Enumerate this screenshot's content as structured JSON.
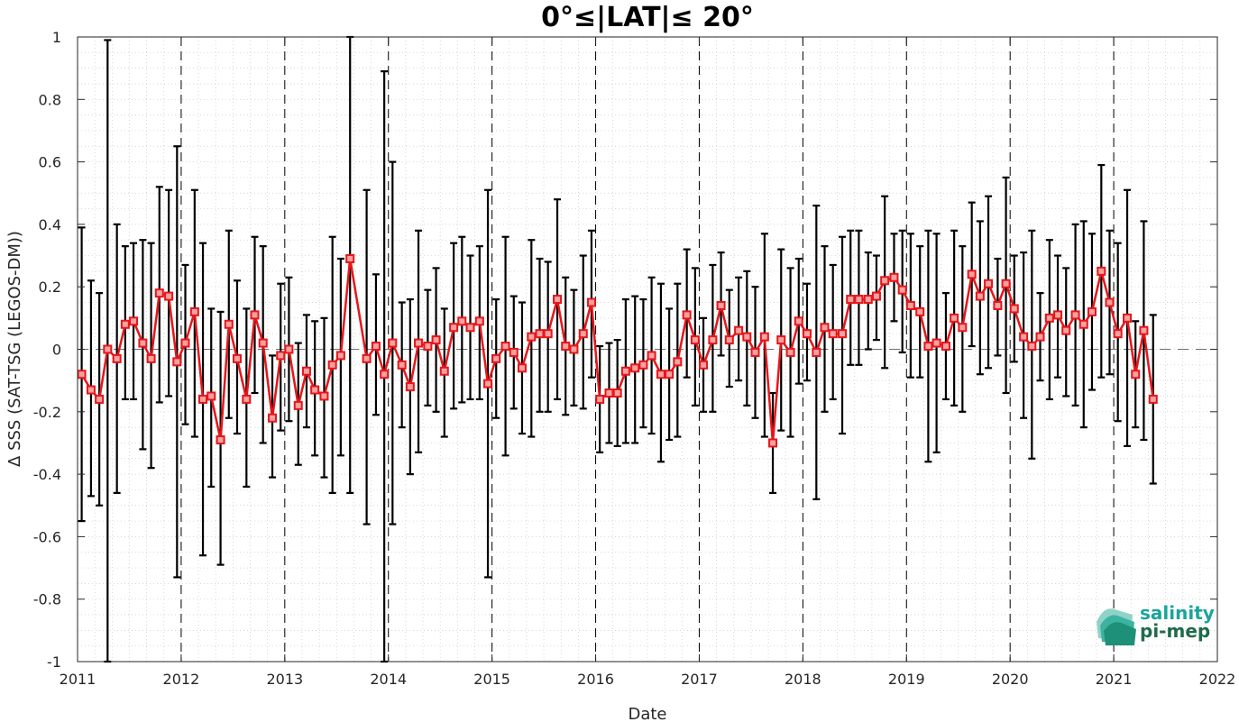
{
  "chart_data": {
    "type": "line",
    "title": "0°≤|LAT|≤ 20°",
    "xlabel": "Date",
    "ylabel": "Δ SSS (SAT-TSG (LEGOS-DM))",
    "xlim": [
      2011,
      2022
    ],
    "ylim": [
      -1,
      1
    ],
    "x_ticks": [
      "2011",
      "2012",
      "2013",
      "2014",
      "2015",
      "2016",
      "2017",
      "2018",
      "2019",
      "2020",
      "2021",
      "2022"
    ],
    "y_ticks": [
      "-1",
      "-0.8",
      "-0.6",
      "-0.4",
      "-0.2",
      "0",
      "0.2",
      "0.4",
      "0.6",
      "0.8",
      "1"
    ],
    "grid": "dotted minor grid",
    "year_markers": "dashed vertical lines at each year",
    "zero_line": "dashed horizontal line at 0",
    "series": [
      {
        "color": "#e6161b",
        "marker": "square",
        "points": [
          {
            "x": 2011.04,
            "y": -0.08,
            "low": -0.55,
            "high": 0.39
          },
          {
            "x": 2011.13,
            "y": -0.13,
            "low": -0.47,
            "high": 0.22
          },
          {
            "x": 2011.21,
            "y": -0.16,
            "low": -0.5,
            "high": 0.18
          },
          {
            "x": 2011.29,
            "y": 0.0,
            "low": -1.0,
            "high": 0.99
          },
          {
            "x": 2011.38,
            "y": -0.03,
            "low": -0.46,
            "high": 0.4
          },
          {
            "x": 2011.46,
            "y": 0.08,
            "low": -0.16,
            "high": 0.33
          },
          {
            "x": 2011.54,
            "y": 0.09,
            "low": -0.16,
            "high": 0.34
          },
          {
            "x": 2011.63,
            "y": 0.02,
            "low": -0.32,
            "high": 0.35
          },
          {
            "x": 2011.71,
            "y": -0.03,
            "low": -0.38,
            "high": 0.34
          },
          {
            "x": 2011.79,
            "y": 0.18,
            "low": -0.17,
            "high": 0.52
          },
          {
            "x": 2011.88,
            "y": 0.17,
            "low": -0.15,
            "high": 0.51
          },
          {
            "x": 2011.96,
            "y": -0.04,
            "low": -0.73,
            "high": 0.65
          },
          {
            "x": 2012.04,
            "y": 0.02,
            "low": -0.24,
            "high": 0.27
          },
          {
            "x": 2012.13,
            "y": 0.12,
            "low": -0.28,
            "high": 0.51
          },
          {
            "x": 2012.21,
            "y": -0.16,
            "low": -0.66,
            "high": 0.34
          },
          {
            "x": 2012.29,
            "y": -0.15,
            "low": -0.44,
            "high": 0.13
          },
          {
            "x": 2012.38,
            "y": -0.29,
            "low": -0.69,
            "high": 0.12
          },
          {
            "x": 2012.46,
            "y": 0.08,
            "low": -0.22,
            "high": 0.38
          },
          {
            "x": 2012.54,
            "y": -0.03,
            "low": -0.27,
            "high": 0.22
          },
          {
            "x": 2012.63,
            "y": -0.16,
            "low": -0.44,
            "high": 0.13
          },
          {
            "x": 2012.71,
            "y": 0.11,
            "low": -0.14,
            "high": 0.36
          },
          {
            "x": 2012.79,
            "y": 0.02,
            "low": -0.3,
            "high": 0.33
          },
          {
            "x": 2012.88,
            "y": -0.22,
            "low": -0.41,
            "high": -0.02
          },
          {
            "x": 2012.96,
            "y": -0.02,
            "low": -0.26,
            "high": 0.21
          },
          {
            "x": 2013.04,
            "y": 0.0,
            "low": -0.23,
            "high": 0.23
          },
          {
            "x": 2013.13,
            "y": -0.18,
            "low": -0.37,
            "high": 0.02
          },
          {
            "x": 2013.21,
            "y": -0.07,
            "low": -0.25,
            "high": 0.11
          },
          {
            "x": 2013.29,
            "y": -0.13,
            "low": -0.34,
            "high": 0.09
          },
          {
            "x": 2013.38,
            "y": -0.15,
            "low": -0.41,
            "high": 0.1
          },
          {
            "x": 2013.46,
            "y": -0.05,
            "low": -0.46,
            "high": 0.36
          },
          {
            "x": 2013.54,
            "y": -0.02,
            "low": -0.34,
            "high": 0.29
          },
          {
            "x": 2013.63,
            "y": 0.29,
            "low": -0.46,
            "high": 1.0
          },
          {
            "x": 2013.79,
            "y": -0.03,
            "low": -0.56,
            "high": 0.51
          },
          {
            "x": 2013.88,
            "y": 0.01,
            "low": -0.21,
            "high": 0.24
          },
          {
            "x": 2013.96,
            "y": -0.08,
            "low": -1.0,
            "high": 0.89
          },
          {
            "x": 2014.04,
            "y": 0.02,
            "low": -0.56,
            "high": 0.6
          },
          {
            "x": 2014.13,
            "y": -0.05,
            "low": -0.25,
            "high": 0.15
          },
          {
            "x": 2014.21,
            "y": -0.12,
            "low": -0.4,
            "high": 0.16
          },
          {
            "x": 2014.29,
            "y": 0.02,
            "low": -0.33,
            "high": 0.38
          },
          {
            "x": 2014.38,
            "y": 0.01,
            "low": -0.18,
            "high": 0.19
          },
          {
            "x": 2014.46,
            "y": 0.03,
            "low": -0.2,
            "high": 0.26
          },
          {
            "x": 2014.54,
            "y": -0.07,
            "low": -0.28,
            "high": 0.13
          },
          {
            "x": 2014.63,
            "y": 0.07,
            "low": -0.19,
            "high": 0.34
          },
          {
            "x": 2014.71,
            "y": 0.09,
            "low": -0.17,
            "high": 0.36
          },
          {
            "x": 2014.79,
            "y": 0.07,
            "low": -0.16,
            "high": 0.3
          },
          {
            "x": 2014.88,
            "y": 0.09,
            "low": -0.16,
            "high": 0.33
          },
          {
            "x": 2014.96,
            "y": -0.11,
            "low": -0.73,
            "high": 0.51
          },
          {
            "x": 2015.04,
            "y": -0.03,
            "low": -0.22,
            "high": 0.16
          },
          {
            "x": 2015.13,
            "y": 0.01,
            "low": -0.34,
            "high": 0.36
          },
          {
            "x": 2015.21,
            "y": -0.01,
            "low": -0.19,
            "high": 0.17
          },
          {
            "x": 2015.29,
            "y": -0.06,
            "low": -0.27,
            "high": 0.15
          },
          {
            "x": 2015.38,
            "y": 0.04,
            "low": -0.28,
            "high": 0.35
          },
          {
            "x": 2015.46,
            "y": 0.05,
            "low": -0.2,
            "high": 0.29
          },
          {
            "x": 2015.54,
            "y": 0.05,
            "low": -0.2,
            "high": 0.28
          },
          {
            "x": 2015.63,
            "y": 0.16,
            "low": -0.16,
            "high": 0.48
          },
          {
            "x": 2015.71,
            "y": 0.01,
            "low": -0.21,
            "high": 0.23
          },
          {
            "x": 2015.79,
            "y": 0.0,
            "low": -0.18,
            "high": 0.19
          },
          {
            "x": 2015.88,
            "y": 0.05,
            "low": -0.19,
            "high": 0.3
          },
          {
            "x": 2015.96,
            "y": 0.15,
            "low": -0.09,
            "high": 0.38
          },
          {
            "x": 2016.04,
            "y": -0.16,
            "low": -0.33,
            "high": 0.01
          },
          {
            "x": 2016.13,
            "y": -0.14,
            "low": -0.3,
            "high": 0.02
          },
          {
            "x": 2016.21,
            "y": -0.14,
            "low": -0.31,
            "high": 0.03
          },
          {
            "x": 2016.29,
            "y": -0.07,
            "low": -0.3,
            "high": 0.16
          },
          {
            "x": 2016.38,
            "y": -0.06,
            "low": -0.3,
            "high": 0.17
          },
          {
            "x": 2016.46,
            "y": -0.05,
            "low": -0.25,
            "high": 0.16
          },
          {
            "x": 2016.54,
            "y": -0.02,
            "low": -0.27,
            "high": 0.23
          },
          {
            "x": 2016.63,
            "y": -0.08,
            "low": -0.36,
            "high": 0.21
          },
          {
            "x": 2016.71,
            "y": -0.08,
            "low": -0.29,
            "high": 0.13
          },
          {
            "x": 2016.79,
            "y": -0.04,
            "low": -0.28,
            "high": 0.21
          },
          {
            "x": 2016.88,
            "y": 0.11,
            "low": -0.09,
            "high": 0.32
          },
          {
            "x": 2016.96,
            "y": 0.03,
            "low": -0.18,
            "high": 0.26
          },
          {
            "x": 2017.04,
            "y": -0.05,
            "low": -0.2,
            "high": 0.1
          },
          {
            "x": 2017.13,
            "y": 0.03,
            "low": -0.2,
            "high": 0.27
          },
          {
            "x": 2017.21,
            "y": 0.14,
            "low": -0.02,
            "high": 0.31
          },
          {
            "x": 2017.29,
            "y": 0.03,
            "low": -0.12,
            "high": 0.19
          },
          {
            "x": 2017.38,
            "y": 0.06,
            "low": -0.1,
            "high": 0.23
          },
          {
            "x": 2017.46,
            "y": 0.04,
            "low": -0.18,
            "high": 0.25
          },
          {
            "x": 2017.54,
            "y": -0.01,
            "low": -0.22,
            "high": 0.2
          },
          {
            "x": 2017.63,
            "y": 0.04,
            "low": -0.28,
            "high": 0.37
          },
          {
            "x": 2017.71,
            "y": -0.3,
            "low": -0.46,
            "high": -0.14
          },
          {
            "x": 2017.79,
            "y": 0.03,
            "low": -0.26,
            "high": 0.32
          },
          {
            "x": 2017.88,
            "y": -0.01,
            "low": -0.28,
            "high": 0.26
          },
          {
            "x": 2017.96,
            "y": 0.09,
            "low": -0.11,
            "high": 0.29
          },
          {
            "x": 2018.04,
            "y": 0.05,
            "low": -0.1,
            "high": 0.21
          },
          {
            "x": 2018.13,
            "y": -0.01,
            "low": -0.48,
            "high": 0.46
          },
          {
            "x": 2018.21,
            "y": 0.07,
            "low": -0.2,
            "high": 0.33
          },
          {
            "x": 2018.29,
            "y": 0.05,
            "low": -0.16,
            "high": 0.27
          },
          {
            "x": 2018.38,
            "y": 0.05,
            "low": -0.27,
            "high": 0.36
          },
          {
            "x": 2018.46,
            "y": 0.16,
            "low": -0.05,
            "high": 0.38
          },
          {
            "x": 2018.54,
            "y": 0.16,
            "low": -0.05,
            "high": 0.38
          },
          {
            "x": 2018.63,
            "y": 0.16,
            "low": 0.0,
            "high": 0.31
          },
          {
            "x": 2018.71,
            "y": 0.17,
            "low": 0.03,
            "high": 0.3
          },
          {
            "x": 2018.79,
            "y": 0.22,
            "low": -0.06,
            "high": 0.49
          },
          {
            "x": 2018.88,
            "y": 0.23,
            "low": 0.09,
            "high": 0.37
          },
          {
            "x": 2018.96,
            "y": 0.19,
            "low": -0.01,
            "high": 0.38
          },
          {
            "x": 2019.04,
            "y": 0.14,
            "low": -0.09,
            "high": 0.37
          },
          {
            "x": 2019.13,
            "y": 0.12,
            "low": -0.09,
            "high": 0.33
          },
          {
            "x": 2019.21,
            "y": 0.01,
            "low": -0.36,
            "high": 0.38
          },
          {
            "x": 2019.29,
            "y": 0.02,
            "low": -0.33,
            "high": 0.37
          },
          {
            "x": 2019.38,
            "y": 0.01,
            "low": -0.16,
            "high": 0.18
          },
          {
            "x": 2019.46,
            "y": 0.1,
            "low": -0.18,
            "high": 0.38
          },
          {
            "x": 2019.54,
            "y": 0.07,
            "low": -0.2,
            "high": 0.33
          },
          {
            "x": 2019.63,
            "y": 0.24,
            "low": 0.01,
            "high": 0.47
          },
          {
            "x": 2019.71,
            "y": 0.17,
            "low": -0.08,
            "high": 0.41
          },
          {
            "x": 2019.79,
            "y": 0.21,
            "low": -0.06,
            "high": 0.49
          },
          {
            "x": 2019.88,
            "y": 0.14,
            "low": -0.02,
            "high": 0.29
          },
          {
            "x": 2019.96,
            "y": 0.21,
            "low": -0.14,
            "high": 0.55
          },
          {
            "x": 2020.04,
            "y": 0.13,
            "low": -0.04,
            "high": 0.3
          },
          {
            "x": 2020.13,
            "y": 0.04,
            "low": -0.22,
            "high": 0.31
          },
          {
            "x": 2020.21,
            "y": 0.01,
            "low": -0.35,
            "high": 0.38
          },
          {
            "x": 2020.29,
            "y": 0.04,
            "low": -0.1,
            "high": 0.18
          },
          {
            "x": 2020.38,
            "y": 0.1,
            "low": -0.16,
            "high": 0.35
          },
          {
            "x": 2020.46,
            "y": 0.11,
            "low": -0.09,
            "high": 0.3
          },
          {
            "x": 2020.54,
            "y": 0.06,
            "low": -0.15,
            "high": 0.26
          },
          {
            "x": 2020.63,
            "y": 0.11,
            "low": -0.18,
            "high": 0.4
          },
          {
            "x": 2020.71,
            "y": 0.08,
            "low": -0.25,
            "high": 0.41
          },
          {
            "x": 2020.79,
            "y": 0.12,
            "low": -0.13,
            "high": 0.37
          },
          {
            "x": 2020.88,
            "y": 0.25,
            "low": -0.09,
            "high": 0.59
          },
          {
            "x": 2020.96,
            "y": 0.15,
            "low": -0.08,
            "high": 0.38
          },
          {
            "x": 2021.04,
            "y": 0.05,
            "low": -0.23,
            "high": 0.34
          },
          {
            "x": 2021.13,
            "y": 0.1,
            "low": -0.31,
            "high": 0.51
          },
          {
            "x": 2021.21,
            "y": -0.08,
            "low": -0.25,
            "high": 0.09
          },
          {
            "x": 2021.29,
            "y": 0.06,
            "low": -0.29,
            "high": 0.41
          },
          {
            "x": 2021.38,
            "y": -0.16,
            "low": -0.43,
            "high": 0.11
          }
        ]
      }
    ]
  },
  "logo": {
    "line1": "salinity",
    "line2": "pi-mep",
    "colors": {
      "teal": "#1aa59b",
      "dark_green": "#1e6b4c"
    }
  }
}
